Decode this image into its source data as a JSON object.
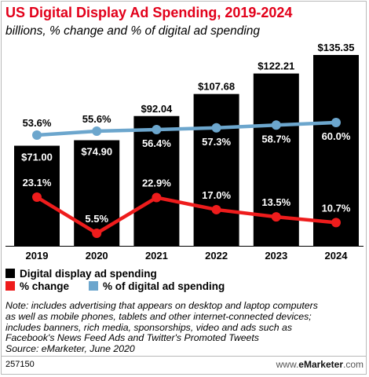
{
  "title": "US Digital Display Ad Spending, 2019-2024",
  "subtitle": "billions, % change and % of digital ad spending",
  "colors": {
    "accent": "#e2001a",
    "bar": "#000000",
    "pct_change": "#ee1c1c",
    "pct_digital": "#6ca6cd"
  },
  "chart_data": {
    "type": "bar",
    "categories": [
      "2019",
      "2020",
      "2021",
      "2022",
      "2023",
      "2024"
    ],
    "series": [
      {
        "name": "Digital display ad spending",
        "type": "bar",
        "values": [
          71.0,
          74.9,
          92.04,
          107.68,
          122.21,
          135.35
        ],
        "labels": [
          "$71.00",
          "$74.90",
          "$92.04",
          "$107.68",
          "$122.21",
          "$135.35"
        ]
      },
      {
        "name": "% change",
        "type": "line",
        "values": [
          23.1,
          5.5,
          22.9,
          17.0,
          13.5,
          10.7
        ],
        "labels": [
          "23.1%",
          "5.5%",
          "22.9%",
          "17.0%",
          "13.5%",
          "10.7%"
        ]
      },
      {
        "name": "% of digital ad spending",
        "type": "line",
        "values": [
          53.6,
          55.6,
          56.4,
          57.3,
          58.7,
          60.0
        ],
        "labels": [
          "53.6%",
          "55.6%",
          "56.4%",
          "57.3%",
          "58.7%",
          "60.0%"
        ]
      }
    ]
  },
  "legend": [
    {
      "label": "Digital display ad spending",
      "color": "#000000"
    },
    {
      "label": "% change",
      "color": "#ee1c1c"
    },
    {
      "label": "% of digital ad spending",
      "color": "#6ca6cd"
    }
  ],
  "note": [
    "Note: includes advertising that appears on desktop and laptop computers",
    "as well as mobile phones, tablets and other internet-connected devices;",
    "includes banners, rich media, sponsorships, video and ads such as",
    "Facebook's News Feed Ads and Twitter's Promoted Tweets",
    "Source: eMarketer, June 2020"
  ],
  "chart_id": "257150",
  "brand": {
    "prefix": "www.",
    "name": "eMarketer",
    "suffix": ".com"
  }
}
